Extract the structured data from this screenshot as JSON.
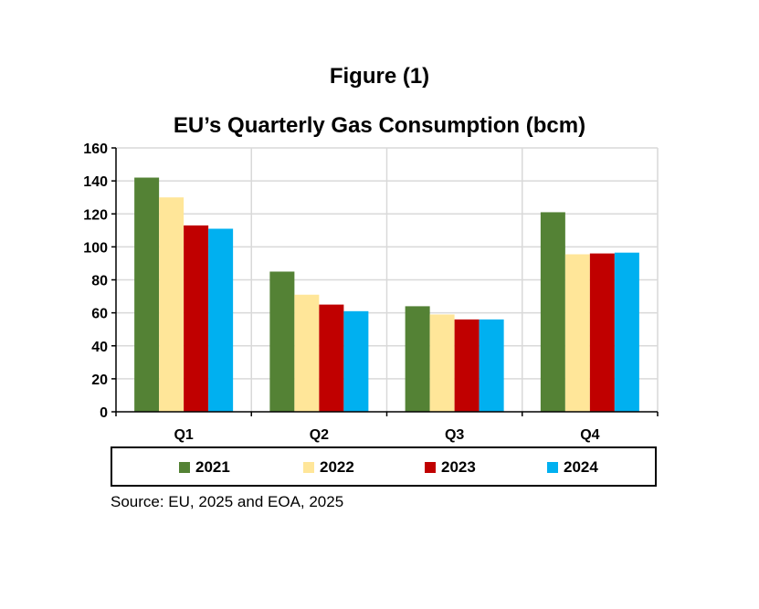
{
  "figure_label": "Figure (1)",
  "source_note": "Source: EU, 2025 and EOA, 2025",
  "chart_data": {
    "type": "bar",
    "title": "EU’s Quarterly Gas Consumption (bcm)",
    "xlabel": "",
    "ylabel": "",
    "categories": [
      "Q1",
      "Q2",
      "Q3",
      "Q4"
    ],
    "ylim": [
      0,
      160
    ],
    "yticks": [
      0,
      20,
      40,
      60,
      80,
      100,
      120,
      140,
      160
    ],
    "grid": true,
    "legend_position": "bottom",
    "series": [
      {
        "name": "2021",
        "color": "#548235",
        "values": [
          142,
          85,
          64,
          121
        ]
      },
      {
        "name": "2022",
        "color": "#FFE699",
        "values": [
          130,
          71,
          59,
          95.5
        ]
      },
      {
        "name": "2023",
        "color": "#C00000",
        "values": [
          113,
          65,
          56,
          96
        ]
      },
      {
        "name": "2024",
        "color": "#00B0F0",
        "values": [
          111,
          61,
          56,
          96.5
        ]
      }
    ]
  }
}
